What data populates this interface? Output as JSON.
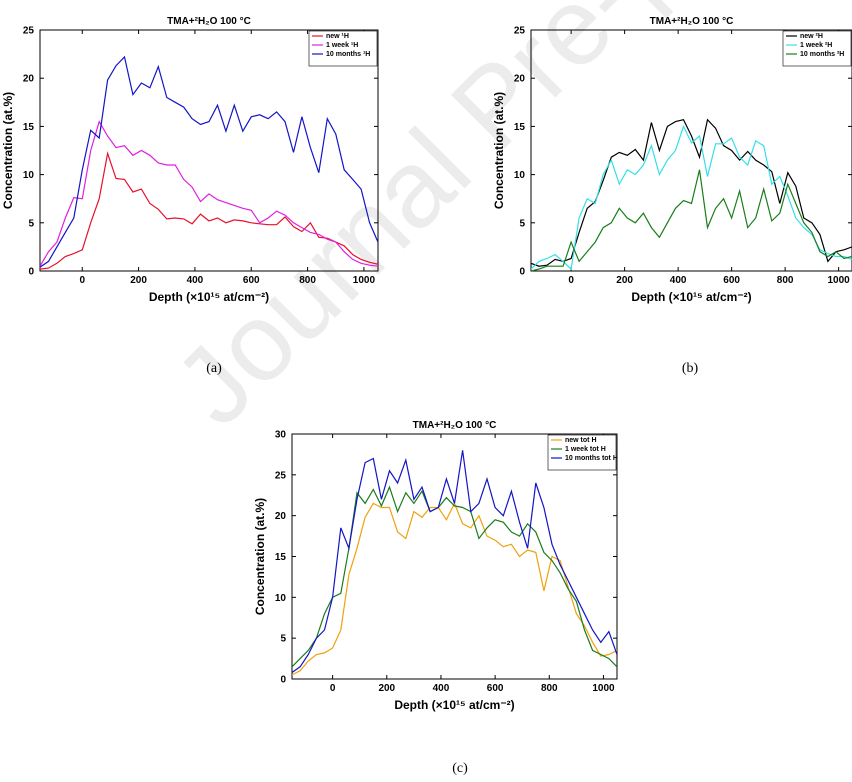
{
  "watermark": "Journal Pre-proof",
  "chart_data": [
    {
      "type": "line",
      "caption": "(a)",
      "title": "TMA+²H₂O 100 °C",
      "xlabel": "Depth (×10¹⁵ at/cm⁻²)",
      "ylabel": "Concentration (at.%)",
      "xlim": [
        -150,
        1050
      ],
      "ylim": [
        0,
        25
      ],
      "xticks": [
        0,
        200,
        400,
        600,
        800,
        1000
      ],
      "yticks": [
        0,
        5,
        10,
        15,
        20,
        25
      ],
      "legend_position": "top-right",
      "series": [
        {
          "name": "new ¹H",
          "color": "#e8112d",
          "x": [
            -150,
            -120,
            -90,
            -60,
            -30,
            0,
            30,
            60,
            90,
            120,
            150,
            180,
            210,
            240,
            270,
            300,
            330,
            360,
            390,
            420,
            450,
            480,
            510,
            540,
            570,
            600,
            630,
            660,
            690,
            720,
            750,
            780,
            810,
            840,
            870,
            900,
            930,
            960,
            990,
            1020,
            1050
          ],
          "y": [
            0.2,
            0.3,
            0.8,
            1.5,
            1.8,
            2.2,
            5,
            7.5,
            12.2,
            9.6,
            9.5,
            8.2,
            8.5,
            7.0,
            6.4,
            5.4,
            5.5,
            5.4,
            4.9,
            5.9,
            5.2,
            5.5,
            5.0,
            5.3,
            5.2,
            5.0,
            4.9,
            4.8,
            4.8,
            5.6,
            4.6,
            4.1,
            5.0,
            3.5,
            3.4,
            3.0,
            2.6,
            1.7,
            1.2,
            0.9,
            0.7
          ]
        },
        {
          "name": "1 week ¹H",
          "color": "#e020e0",
          "x": [
            -150,
            -120,
            -90,
            -60,
            -30,
            0,
            30,
            60,
            90,
            120,
            150,
            180,
            210,
            240,
            270,
            300,
            330,
            360,
            390,
            420,
            450,
            480,
            510,
            540,
            570,
            600,
            630,
            660,
            690,
            720,
            750,
            780,
            810,
            840,
            870,
            900,
            930,
            960,
            990,
            1020,
            1050
          ],
          "y": [
            0.5,
            2.0,
            3.0,
            5.5,
            7.6,
            7.5,
            12.5,
            15.5,
            14.0,
            12.8,
            13.0,
            12.0,
            12.5,
            12.0,
            11.2,
            11.0,
            11.0,
            9.5,
            8.7,
            7.2,
            8.0,
            7.4,
            7.1,
            6.8,
            6.5,
            6.3,
            5.0,
            5.5,
            6.2,
            5.8,
            5.0,
            4.5,
            4.0,
            3.8,
            3.3,
            3.0,
            2.0,
            1.2,
            0.8,
            0.6,
            0.5
          ]
        },
        {
          "name": "10 months ¹H",
          "color": "#1414c8",
          "x": [
            -150,
            -120,
            -90,
            -60,
            -30,
            0,
            30,
            60,
            90,
            120,
            150,
            180,
            210,
            240,
            270,
            300,
            330,
            360,
            390,
            420,
            450,
            480,
            510,
            540,
            570,
            600,
            630,
            660,
            690,
            720,
            750,
            780,
            810,
            840,
            870,
            900,
            930,
            960,
            990,
            1020,
            1050
          ],
          "y": [
            0.4,
            1.0,
            2.5,
            4.0,
            5.5,
            10.5,
            14.6,
            13.8,
            19.8,
            21.3,
            22.2,
            18.3,
            19.5,
            19.0,
            21.2,
            18.0,
            17.5,
            17.0,
            15.8,
            15.2,
            15.5,
            17.2,
            14.5,
            17.2,
            14.5,
            16.0,
            16.2,
            15.8,
            16.5,
            15.5,
            12.3,
            16.0,
            12.8,
            10.2,
            15.8,
            14.2,
            10.5,
            9.5,
            8.5,
            5.0,
            3.0
          ]
        }
      ]
    },
    {
      "type": "line",
      "caption": "(b)",
      "title": "TMA+²H₂O 100 °C",
      "xlabel": "Depth (×10¹⁵ at/cm⁻²)",
      "ylabel": "Concentration (at.%)",
      "xlim": [
        -150,
        1050
      ],
      "ylim": [
        0,
        25
      ],
      "xticks": [
        0,
        200,
        400,
        600,
        800,
        1000
      ],
      "yticks": [
        0,
        5,
        10,
        15,
        20,
        25
      ],
      "legend_position": "top-right",
      "series": [
        {
          "name": "new ²H",
          "color": "#000000",
          "x": [
            -150,
            -120,
            -90,
            -60,
            -30,
            0,
            30,
            60,
            90,
            120,
            150,
            180,
            210,
            240,
            270,
            300,
            330,
            360,
            390,
            420,
            450,
            480,
            510,
            540,
            570,
            600,
            630,
            660,
            690,
            720,
            750,
            780,
            810,
            840,
            870,
            900,
            930,
            960,
            990,
            1020,
            1050
          ],
          "y": [
            0.8,
            0.5,
            0.6,
            1.2,
            1.0,
            1.3,
            4.0,
            6.5,
            7.2,
            9.4,
            11.8,
            12.3,
            12.0,
            12.6,
            11.5,
            15.4,
            12.5,
            15.0,
            15.5,
            15.7,
            14.0,
            11.8,
            15.7,
            14.8,
            13.0,
            12.5,
            11.5,
            12.4,
            11.5,
            11.0,
            10.3,
            7.0,
            10.2,
            8.8,
            5.5,
            5.0,
            3.8,
            1.0,
            2.0,
            2.2,
            2.5
          ]
        },
        {
          "name": "1 week ²H",
          "color": "#33e0e8",
          "x": [
            -150,
            -120,
            -90,
            -60,
            -30,
            0,
            30,
            60,
            90,
            120,
            150,
            180,
            210,
            240,
            270,
            300,
            330,
            360,
            390,
            420,
            450,
            480,
            510,
            540,
            570,
            600,
            630,
            660,
            690,
            720,
            750,
            780,
            810,
            840,
            870,
            900,
            930,
            960,
            990,
            1020,
            1050
          ],
          "y": [
            0.2,
            1.0,
            1.3,
            1.7,
            1.0,
            0.2,
            5.5,
            7.5,
            7.0,
            10.0,
            11.5,
            9.0,
            10.5,
            10.0,
            11.0,
            13.0,
            10.0,
            11.5,
            12.5,
            15.0,
            13.3,
            14.0,
            9.8,
            13.2,
            13.2,
            13.8,
            11.8,
            11.0,
            13.5,
            13.0,
            9.0,
            9.8,
            7.8,
            5.5,
            4.5,
            3.8,
            2.2,
            1.8,
            1.5,
            1.5,
            1.2
          ]
        },
        {
          "name": "10 months ²H",
          "color": "#1a7d1a",
          "x": [
            -150,
            -120,
            -90,
            -60,
            -30,
            0,
            30,
            60,
            90,
            120,
            150,
            180,
            210,
            240,
            270,
            300,
            330,
            360,
            390,
            420,
            450,
            480,
            510,
            540,
            570,
            600,
            630,
            660,
            690,
            720,
            750,
            780,
            810,
            840,
            870,
            900,
            930,
            960,
            990,
            1020,
            1050
          ],
          "y": [
            0.0,
            0.2,
            0.5,
            0.5,
            0.5,
            3.0,
            1.0,
            2.0,
            3.0,
            4.5,
            5.0,
            6.5,
            5.5,
            5.0,
            6.0,
            4.5,
            3.5,
            5.0,
            6.5,
            7.3,
            7.0,
            10.5,
            4.5,
            6.5,
            7.5,
            5.5,
            8.3,
            4.5,
            5.5,
            8.5,
            5.2,
            6.0,
            9.0,
            7.0,
            5.0,
            4.0,
            2.0,
            1.5,
            2.0,
            1.3,
            1.5
          ]
        }
      ]
    },
    {
      "type": "line",
      "caption": "(c)",
      "title": "TMA+²H₂O 100 °C",
      "xlabel": "Depth (×10¹⁵ at/cm⁻²)",
      "ylabel": "Concentration (at.%)",
      "xlim": [
        -150,
        1050
      ],
      "ylim": [
        0,
        30
      ],
      "xticks": [
        0,
        200,
        400,
        600,
        800,
        1000
      ],
      "yticks": [
        0,
        5,
        10,
        15,
        20,
        25,
        30
      ],
      "legend_position": "top-right",
      "series": [
        {
          "name": "new tot H",
          "color": "#f0a010",
          "x": [
            -150,
            -120,
            -90,
            -60,
            -30,
            0,
            30,
            60,
            90,
            120,
            150,
            180,
            210,
            240,
            270,
            300,
            330,
            360,
            390,
            420,
            450,
            480,
            510,
            540,
            570,
            600,
            630,
            660,
            690,
            720,
            750,
            780,
            810,
            840,
            870,
            900,
            930,
            960,
            990,
            1020,
            1050
          ],
          "y": [
            0.5,
            1.0,
            2.2,
            3.0,
            3.2,
            3.8,
            6.0,
            12.8,
            16.0,
            19.8,
            21.5,
            21.0,
            21.0,
            18.0,
            17.2,
            20.5,
            19.8,
            21.0,
            21.0,
            19.5,
            21.5,
            19.0,
            18.5,
            20.0,
            17.5,
            17.0,
            16.2,
            16.5,
            15.0,
            15.8,
            15.5,
            10.8,
            15.0,
            14.5,
            11.2,
            8.0,
            6.5,
            4.5,
            2.8,
            3.0,
            3.5
          ]
        },
        {
          "name": "1 week tot H",
          "color": "#1a7d1a",
          "x": [
            -150,
            -120,
            -90,
            -60,
            -30,
            0,
            30,
            60,
            90,
            120,
            150,
            180,
            210,
            240,
            270,
            300,
            330,
            360,
            390,
            420,
            450,
            480,
            510,
            540,
            570,
            600,
            630,
            660,
            690,
            720,
            750,
            780,
            810,
            840,
            870,
            900,
            930,
            960,
            990,
            1020,
            1050
          ],
          "y": [
            1.5,
            2.5,
            3.5,
            5.0,
            8.0,
            10.0,
            10.5,
            16.0,
            22.8,
            21.5,
            23.2,
            21.2,
            23.5,
            20.5,
            22.8,
            21.5,
            23.0,
            20.5,
            21.0,
            22.2,
            21.2,
            21.0,
            20.5,
            17.2,
            18.5,
            19.5,
            19.2,
            18.0,
            17.5,
            19.0,
            18.0,
            15.5,
            14.5,
            13.0,
            11.0,
            9.5,
            6.0,
            3.5,
            3.0,
            2.5,
            1.5
          ]
        },
        {
          "name": "10 months tot H",
          "color": "#1414c8",
          "x": [
            -150,
            -120,
            -90,
            -60,
            -30,
            0,
            30,
            60,
            90,
            120,
            150,
            180,
            210,
            240,
            270,
            300,
            330,
            360,
            390,
            420,
            450,
            480,
            510,
            540,
            570,
            600,
            630,
            660,
            690,
            720,
            750,
            780,
            810,
            840,
            870,
            900,
            930,
            960,
            990,
            1020,
            1050
          ],
          "y": [
            0.8,
            1.5,
            3.0,
            5.0,
            6.0,
            10.0,
            18.5,
            16.0,
            22.0,
            26.5,
            27.0,
            22.0,
            25.5,
            24.0,
            26.8,
            22.0,
            23.5,
            20.5,
            21.0,
            24.5,
            21.5,
            28.0,
            20.5,
            21.5,
            24.5,
            21.0,
            20.0,
            23.0,
            19.2,
            16.0,
            24.0,
            21.0,
            16.5,
            14.0,
            12.0,
            10.0,
            8.0,
            6.0,
            4.5,
            5.8,
            3.0
          ]
        }
      ]
    }
  ]
}
